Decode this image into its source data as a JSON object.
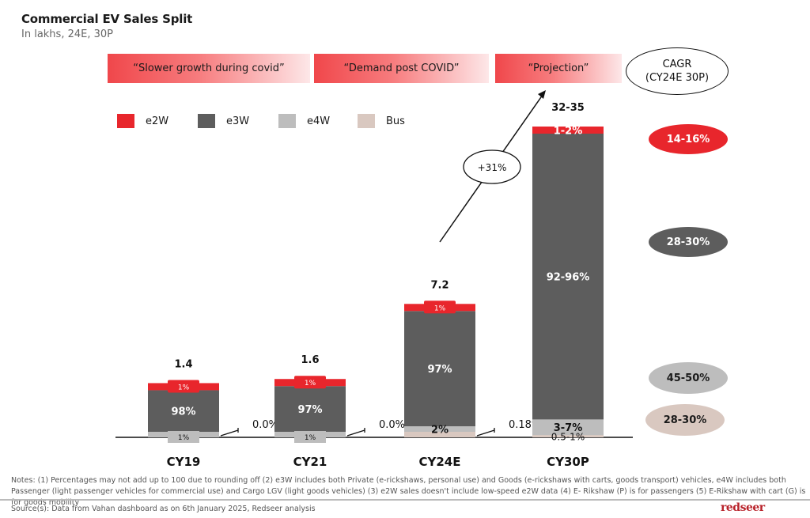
{
  "header": {
    "title": "Commercial EV Sales Split",
    "subtitle": "In lakhs, 24E, 30P"
  },
  "banners": [
    {
      "text": "“Slower growth during covid”"
    },
    {
      "text": "“Demand post COVID”"
    },
    {
      "text": "“Projection”"
    }
  ],
  "cagr_header": {
    "line1": "CAGR",
    "line2": "(CY24E 30P)"
  },
  "colors": {
    "e2W": "#e8262c",
    "e3W": "#5d5d5d",
    "e4W": "#bdbdbd",
    "Bus": "#d9c8c0",
    "axis": "#111111"
  },
  "chart_data": {
    "type": "bar",
    "stacked": true,
    "title": "Commercial EV Sales Split",
    "subtitle": "In lakhs, 24E, 30P",
    "xlabel": "",
    "ylabel": "",
    "grid": false,
    "legend_position": "top-left",
    "categories": [
      "CY19",
      "CY21",
      "CY24E",
      "CY30P"
    ],
    "totals": [
      1.4,
      1.6,
      7.2,
      33.5
    ],
    "total_labels": [
      "1.4",
      "1.6",
      "7.2",
      "32-35"
    ],
    "series": [
      {
        "name": "Bus",
        "values": [
          0.0,
          0.0,
          0.18,
          0.75
        ],
        "labels": [
          "",
          "",
          "",
          "0.5-1%"
        ]
      },
      {
        "name": "e4W",
        "values": [
          1,
          1,
          2,
          5
        ],
        "labels": [
          "1%",
          "1%",
          "2%",
          "3-7%"
        ]
      },
      {
        "name": "e3W",
        "values": [
          98,
          97,
          97,
          94
        ],
        "labels": [
          "98%",
          "97%",
          "97%",
          "92-96%"
        ]
      },
      {
        "name": "e2W",
        "values": [
          1,
          1,
          1,
          1.5
        ],
        "labels": [
          "1%",
          "1%",
          "1%",
          "1-2%"
        ]
      }
    ],
    "bus_callouts": [
      "0.0%",
      "0.0%",
      "0.18%"
    ],
    "growth_annotation": "+31%",
    "cagr_cy24e_30p": [
      {
        "segment": "e2W",
        "value": "14-16%"
      },
      {
        "segment": "e3W",
        "value": "28-30%"
      },
      {
        "segment": "e4W",
        "value": "45-50%"
      },
      {
        "segment": "Bus",
        "value": "28-30%"
      }
    ]
  },
  "footer": {
    "notes": "Notes: (1) Percentages may not add up to 100 due to rounding off (2) e3W includes both Private (e-rickshaws, personal use) and Goods (e-rickshaws with carts, goods transport) vehicles, e4W includes both Passenger (light passenger vehicles for commercial use) and Cargo LGV (light goods vehicles) (3) e2W sales doesn't include low-speed e2W data (4) E- Rikshaw (P) is for passengers (5) E-Rikshaw with cart (G) is for goods mobility",
    "source": "Source(s): Data from Vahan dashboard as on 6th January 2025, Redseer analysis",
    "logo": "redseer"
  }
}
